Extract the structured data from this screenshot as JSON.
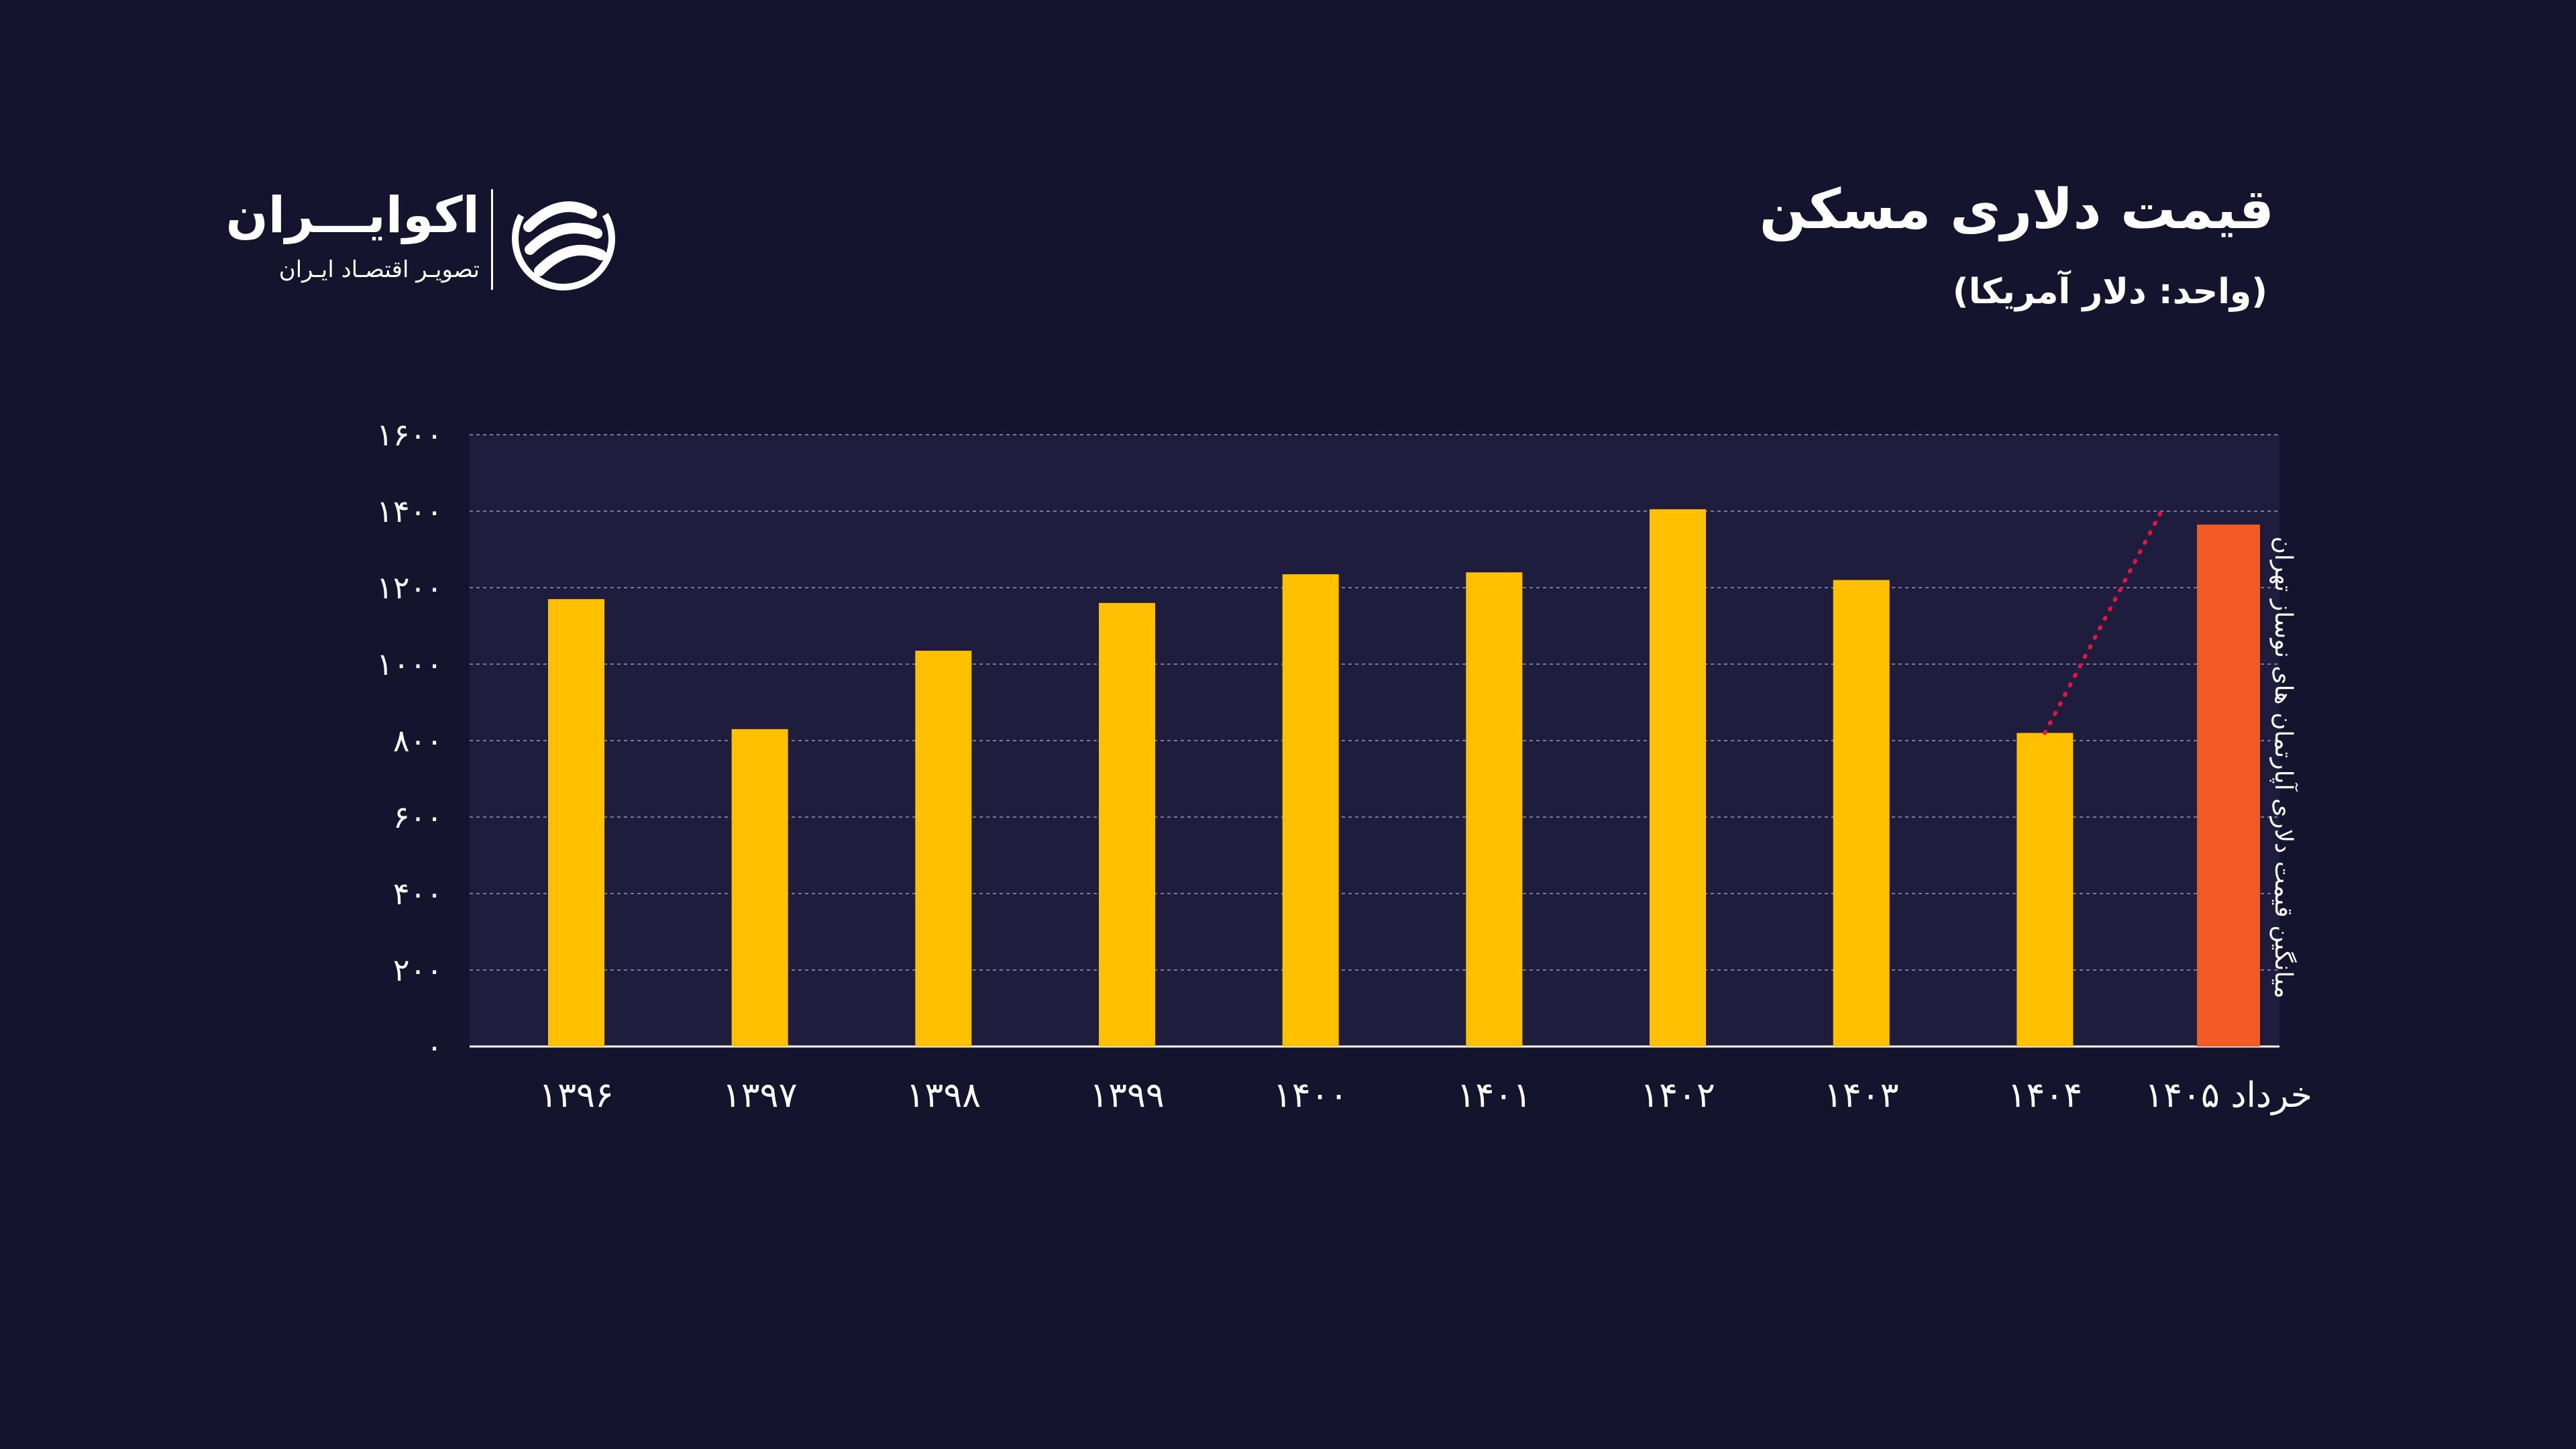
{
  "header": {
    "title": "قیمت دلاری مسکن",
    "subtitle": "(واحد: دلار آمریکا)"
  },
  "brand": {
    "name": "اکوایـــران",
    "tagline": "تصویـر اقتصـاد ایـران",
    "logo_icon": "ecoiran-logo-icon"
  },
  "colors": {
    "background": "#15142f",
    "plot_background": "#1e1d3d",
    "bar": "#ffc000",
    "highlight_bar": "#f15a24",
    "trend_line": "#e0163a",
    "text": "#ffffff"
  },
  "chart_data": {
    "type": "bar",
    "categories": [
      "۱۳۹۶",
      "۱۳۹۷",
      "۱۳۹۸",
      "۱۳۹۹",
      "۱۴۰۰",
      "۱۴۰۱",
      "۱۴۰۲",
      "۱۴۰۳",
      "۱۴۰۴",
      "خرداد ۱۴۰۵"
    ],
    "values": [
      1170,
      830,
      1035,
      1160,
      1235,
      1240,
      1405,
      1220,
      820,
      1365
    ],
    "highlight_index": 9,
    "highlight_label": "میانگین قیمت دلاری آپارتمان های نوساز تهران",
    "ylim": [
      0,
      1600
    ],
    "yticks": [
      0,
      200,
      400,
      600,
      800,
      1000,
      1200,
      1400,
      1600
    ],
    "ytick_labels": [
      "۰",
      "۲۰۰",
      "۴۰۰",
      "۶۰۰",
      "۸۰۰",
      "۱۰۰۰",
      "۱۲۰۰",
      "۱۴۰۰",
      "۱۶۰۰"
    ],
    "grid": true,
    "trend_line": {
      "from_category": "۱۴۰۴",
      "from_value": 820,
      "to_category": "خرداد ۱۴۰۵",
      "to_value": 1400,
      "style": "dotted"
    }
  }
}
